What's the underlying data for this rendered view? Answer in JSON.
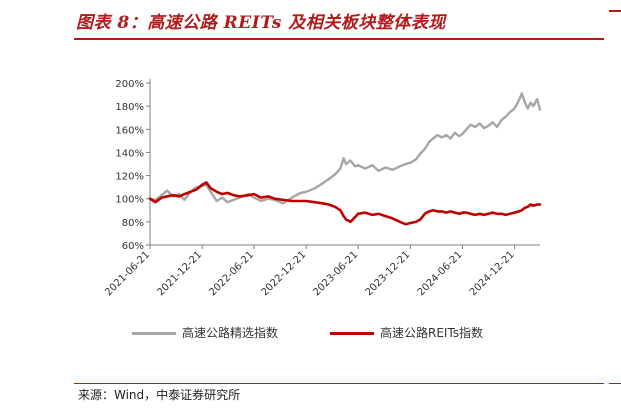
{
  "header": {
    "title": "图表 8：高速公路 REITs 及相关板块整体表现"
  },
  "footer": {
    "source": "来源：Wind，中泰证券研究所"
  },
  "chart_data": {
    "type": "line",
    "y_ticks": [
      "200%",
      "180%",
      "160%",
      "140%",
      "120%",
      "100%",
      "80%",
      "60%"
    ],
    "ylim": [
      60,
      200
    ],
    "x_ticks": [
      "2021-06-21",
      "2021-12-21",
      "2022-06-21",
      "2022-12-21",
      "2023-06-21",
      "2023-12-21",
      "2024-06-21",
      "2024-12-21"
    ],
    "grid": false,
    "legend_position": "bottom",
    "series": [
      {
        "name": "高速公路精选指数",
        "color": "#a6a6a6",
        "points": [
          [
            "2021-06-21",
            100
          ],
          [
            "2021-07-10",
            99
          ],
          [
            "2021-08-01",
            103
          ],
          [
            "2021-08-20",
            107
          ],
          [
            "2021-09-10",
            102
          ],
          [
            "2021-10-01",
            104
          ],
          [
            "2021-10-20",
            99
          ],
          [
            "2021-11-10",
            106
          ],
          [
            "2021-12-01",
            110
          ],
          [
            "2021-12-21",
            111
          ],
          [
            "2022-01-05",
            112
          ],
          [
            "2022-01-20",
            106
          ],
          [
            "2022-02-10",
            98
          ],
          [
            "2022-03-01",
            101
          ],
          [
            "2022-03-20",
            97
          ],
          [
            "2022-04-10",
            99
          ],
          [
            "2022-05-01",
            101
          ],
          [
            "2022-06-01",
            104
          ],
          [
            "2022-06-21",
            101
          ],
          [
            "2022-07-15",
            98
          ],
          [
            "2022-08-10",
            100
          ],
          [
            "2022-09-01",
            99
          ],
          [
            "2022-10-01",
            96
          ],
          [
            "2022-11-01",
            101
          ],
          [
            "2022-12-01",
            105
          ],
          [
            "2022-12-21",
            106
          ],
          [
            "2023-01-20",
            109
          ],
          [
            "2023-02-15",
            113
          ],
          [
            "2023-03-10",
            117
          ],
          [
            "2023-04-01",
            121
          ],
          [
            "2023-04-20",
            126
          ],
          [
            "2023-05-01",
            135
          ],
          [
            "2023-05-10",
            130
          ],
          [
            "2023-05-25",
            133
          ],
          [
            "2023-06-10",
            128
          ],
          [
            "2023-06-21",
            129
          ],
          [
            "2023-07-15",
            126
          ],
          [
            "2023-08-10",
            129
          ],
          [
            "2023-09-01",
            124
          ],
          [
            "2023-09-25",
            127
          ],
          [
            "2023-10-20",
            125
          ],
          [
            "2023-11-15",
            128
          ],
          [
            "2023-12-05",
            130
          ],
          [
            "2023-12-21",
            131
          ],
          [
            "2024-01-10",
            134
          ],
          [
            "2024-01-25",
            139
          ],
          [
            "2024-02-10",
            143
          ],
          [
            "2024-02-25",
            149
          ],
          [
            "2024-03-10",
            152
          ],
          [
            "2024-03-25",
            155
          ],
          [
            "2024-04-10",
            153
          ],
          [
            "2024-04-25",
            155
          ],
          [
            "2024-05-10",
            152
          ],
          [
            "2024-05-25",
            157
          ],
          [
            "2024-06-10",
            154
          ],
          [
            "2024-06-21",
            156
          ],
          [
            "2024-07-05",
            160
          ],
          [
            "2024-07-20",
            164
          ],
          [
            "2024-08-05",
            162
          ],
          [
            "2024-08-20",
            165
          ],
          [
            "2024-09-05",
            161
          ],
          [
            "2024-09-20",
            163
          ],
          [
            "2024-10-05",
            166
          ],
          [
            "2024-10-20",
            162
          ],
          [
            "2024-11-05",
            168
          ],
          [
            "2024-11-20",
            171
          ],
          [
            "2024-12-05",
            175
          ],
          [
            "2024-12-21",
            178
          ],
          [
            "2025-01-05",
            185
          ],
          [
            "2025-01-15",
            191
          ],
          [
            "2025-01-25",
            184
          ],
          [
            "2025-02-05",
            178
          ],
          [
            "2025-02-15",
            183
          ],
          [
            "2025-02-25",
            180
          ],
          [
            "2025-03-10",
            186
          ],
          [
            "2025-03-20",
            177
          ]
        ]
      },
      {
        "name": "高速公路REITs指数",
        "color": "#c00000",
        "points": [
          [
            "2021-06-21",
            100
          ],
          [
            "2021-07-10",
            97
          ],
          [
            "2021-08-01",
            101
          ],
          [
            "2021-08-20",
            102
          ],
          [
            "2021-09-10",
            103
          ],
          [
            "2021-10-01",
            102
          ],
          [
            "2021-10-20",
            104
          ],
          [
            "2021-11-10",
            106
          ],
          [
            "2021-12-01",
            108
          ],
          [
            "2021-12-21",
            112
          ],
          [
            "2022-01-05",
            114
          ],
          [
            "2022-01-20",
            109
          ],
          [
            "2022-02-10",
            106
          ],
          [
            "2022-03-01",
            104
          ],
          [
            "2022-03-20",
            105
          ],
          [
            "2022-04-10",
            103
          ],
          [
            "2022-05-01",
            102
          ],
          [
            "2022-06-01",
            103
          ],
          [
            "2022-06-21",
            104
          ],
          [
            "2022-07-15",
            101
          ],
          [
            "2022-08-10",
            102
          ],
          [
            "2022-09-01",
            100
          ],
          [
            "2022-10-01",
            99
          ],
          [
            "2022-11-01",
            98
          ],
          [
            "2022-12-01",
            98
          ],
          [
            "2022-12-21",
            98
          ],
          [
            "2023-01-20",
            97
          ],
          [
            "2023-02-15",
            96
          ],
          [
            "2023-03-10",
            95
          ],
          [
            "2023-04-01",
            93
          ],
          [
            "2023-04-20",
            90
          ],
          [
            "2023-05-01",
            85
          ],
          [
            "2023-05-10",
            82
          ],
          [
            "2023-05-25",
            80
          ],
          [
            "2023-06-10",
            84
          ],
          [
            "2023-06-21",
            87
          ],
          [
            "2023-07-15",
            88
          ],
          [
            "2023-08-10",
            86
          ],
          [
            "2023-09-01",
            87
          ],
          [
            "2023-09-25",
            85
          ],
          [
            "2023-10-20",
            83
          ],
          [
            "2023-11-15",
            80
          ],
          [
            "2023-12-05",
            78
          ],
          [
            "2023-12-21",
            79
          ],
          [
            "2024-01-10",
            80
          ],
          [
            "2024-01-25",
            82
          ],
          [
            "2024-02-10",
            87
          ],
          [
            "2024-02-25",
            89
          ],
          [
            "2024-03-10",
            90
          ],
          [
            "2024-03-25",
            89
          ],
          [
            "2024-04-10",
            89
          ],
          [
            "2024-04-25",
            88
          ],
          [
            "2024-05-10",
            89
          ],
          [
            "2024-05-25",
            88
          ],
          [
            "2024-06-10",
            87
          ],
          [
            "2024-06-21",
            88
          ],
          [
            "2024-07-05",
            88
          ],
          [
            "2024-07-20",
            87
          ],
          [
            "2024-08-05",
            86
          ],
          [
            "2024-08-20",
            87
          ],
          [
            "2024-09-05",
            86
          ],
          [
            "2024-09-20",
            87
          ],
          [
            "2024-10-05",
            88
          ],
          [
            "2024-10-20",
            87
          ],
          [
            "2024-11-05",
            87
          ],
          [
            "2024-11-20",
            86
          ],
          [
            "2024-12-05",
            87
          ],
          [
            "2024-12-21",
            88
          ],
          [
            "2025-01-05",
            89
          ],
          [
            "2025-01-15",
            90
          ],
          [
            "2025-01-25",
            92
          ],
          [
            "2025-02-05",
            93
          ],
          [
            "2025-02-15",
            95
          ],
          [
            "2025-02-25",
            94
          ],
          [
            "2025-03-10",
            95
          ],
          [
            "2025-03-20",
            95
          ]
        ]
      }
    ]
  }
}
